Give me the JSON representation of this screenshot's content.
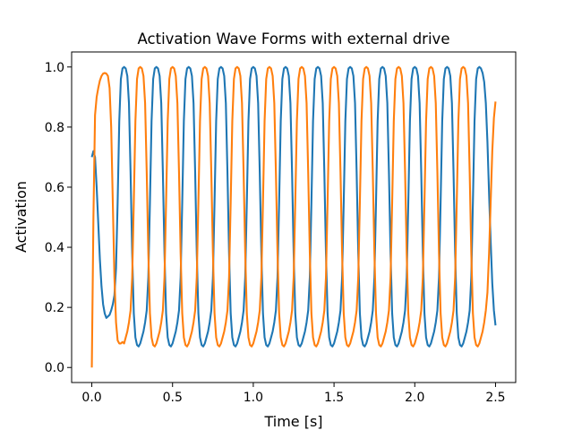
{
  "chart_data": {
    "type": "line",
    "title": "Activation Wave Forms with external drive",
    "x_label": "Time [s]",
    "y_label": "Activation",
    "xlim": [
      -0.125,
      2.625
    ],
    "ylim": [
      -0.05,
      1.05
    ],
    "xticks": [
      {
        "value": 0,
        "label": "0.0"
      },
      0.5,
      {
        "value": 1,
        "label": "1.0"
      },
      1.5,
      {
        "value": 2,
        "label": "2.0"
      },
      2.5
    ],
    "yticks": [
      {
        "value": 0,
        "label": "0.0"
      },
      0.2,
      0.4,
      0.6,
      0.8,
      {
        "value": 1,
        "label": "1.0"
      }
    ],
    "grid": false,
    "x": [
      0,
      0.01,
      0.02,
      0.03,
      0.04,
      0.05,
      0.06,
      0.07,
      0.08,
      0.09,
      0.1,
      0.11,
      0.12,
      0.13,
      0.14,
      0.15,
      0.16,
      0.17,
      0.18,
      0.19,
      0.2,
      0.21,
      0.22,
      0.23,
      0.24,
      0.25,
      0.26,
      0.27,
      0.28,
      0.29,
      0.3,
      0.31,
      0.32,
      0.33,
      0.34,
      0.35,
      0.36,
      0.37,
      0.38,
      0.39,
      0.4,
      0.41,
      0.42,
      0.43,
      0.44,
      0.45,
      0.46,
      0.47,
      0.48,
      0.49,
      0.5,
      0.51,
      0.52,
      0.53,
      0.54,
      0.55,
      0.56,
      0.57,
      0.58,
      0.59,
      0.6,
      0.61,
      0.62,
      0.63,
      0.64,
      0.65,
      0.66,
      0.67,
      0.68,
      0.69,
      0.7,
      0.71,
      0.72,
      0.73,
      0.74,
      0.75,
      0.76,
      0.77,
      0.78,
      0.79,
      0.8,
      0.81,
      0.82,
      0.83,
      0.84,
      0.85,
      0.86,
      0.87,
      0.88,
      0.89,
      0.9,
      0.91,
      0.92,
      0.93,
      0.94,
      0.95,
      0.96,
      0.97,
      0.98,
      0.99,
      1,
      1.01,
      1.02,
      1.03,
      1.04,
      1.05,
      1.06,
      1.07,
      1.08,
      1.09,
      1.1,
      1.11,
      1.12,
      1.13,
      1.14,
      1.15,
      1.16,
      1.17,
      1.18,
      1.19,
      1.2,
      1.21,
      1.22,
      1.23,
      1.24,
      1.25,
      1.26,
      1.27,
      1.28,
      1.29,
      1.3,
      1.31,
      1.32,
      1.33,
      1.34,
      1.35,
      1.36,
      1.37,
      1.38,
      1.39,
      1.4,
      1.41,
      1.42,
      1.43,
      1.44,
      1.45,
      1.46,
      1.47,
      1.48,
      1.49,
      1.5,
      1.51,
      1.52,
      1.53,
      1.54,
      1.55,
      1.56,
      1.57,
      1.58,
      1.59,
      1.6,
      1.61,
      1.62,
      1.63,
      1.64,
      1.65,
      1.66,
      1.67,
      1.68,
      1.69,
      1.7,
      1.71,
      1.72,
      1.73,
      1.74,
      1.75,
      1.76,
      1.77,
      1.78,
      1.79,
      1.8,
      1.81,
      1.82,
      1.83,
      1.84,
      1.85,
      1.86,
      1.87,
      1.88,
      1.89,
      1.9,
      1.91,
      1.92,
      1.93,
      1.94,
      1.95,
      1.96,
      1.97,
      1.98,
      1.99,
      2,
      2.01,
      2.02,
      2.03,
      2.04,
      2.05,
      2.06,
      2.07,
      2.08,
      2.09,
      2.1,
      2.11,
      2.12,
      2.13,
      2.14,
      2.15,
      2.16,
      2.17,
      2.18,
      2.19,
      2.2,
      2.21,
      2.22,
      2.23,
      2.24,
      2.25,
      2.26,
      2.27,
      2.28,
      2.29,
      2.3,
      2.31,
      2.32,
      2.33,
      2.34,
      2.35,
      2.36,
      2.37,
      2.38,
      2.39,
      2.4,
      2.41,
      2.42,
      2.43,
      2.44,
      2.45,
      2.46,
      2.47,
      2.48,
      2.49,
      2.5
    ],
    "series": [
      {
        "color": "#1f77b4",
        "values": [
          0.7,
          0.72,
          0.7,
          0.6,
          0.48,
          0.36,
          0.27,
          0.21,
          0.18,
          0.165,
          0.17,
          0.175,
          0.19,
          0.21,
          0.24,
          0.33,
          0.55,
          0.82,
          0.96,
          0.995,
          1,
          0.995,
          0.97,
          0.88,
          0.65,
          0.38,
          0.18,
          0.1,
          0.075,
          0.07,
          0.08,
          0.1,
          0.12,
          0.15,
          0.19,
          0.3,
          0.55,
          0.82,
          0.96,
          0.995,
          1,
          0.995,
          0.97,
          0.88,
          0.65,
          0.38,
          0.18,
          0.1,
          0.075,
          0.07,
          0.08,
          0.1,
          0.12,
          0.15,
          0.19,
          0.3,
          0.55,
          0.82,
          0.96,
          0.995,
          1,
          0.995,
          0.97,
          0.88,
          0.65,
          0.38,
          0.18,
          0.1,
          0.075,
          0.07,
          0.08,
          0.1,
          0.12,
          0.15,
          0.19,
          0.3,
          0.55,
          0.82,
          0.96,
          0.995,
          1,
          0.995,
          0.97,
          0.88,
          0.65,
          0.38,
          0.18,
          0.1,
          0.075,
          0.07,
          0.08,
          0.1,
          0.12,
          0.15,
          0.19,
          0.3,
          0.55,
          0.82,
          0.96,
          0.995,
          1,
          0.995,
          0.97,
          0.88,
          0.65,
          0.38,
          0.18,
          0.1,
          0.075,
          0.07,
          0.08,
          0.1,
          0.12,
          0.15,
          0.19,
          0.3,
          0.55,
          0.82,
          0.96,
          0.995,
          1,
          0.995,
          0.97,
          0.88,
          0.65,
          0.38,
          0.18,
          0.1,
          0.075,
          0.07,
          0.08,
          0.1,
          0.12,
          0.15,
          0.19,
          0.3,
          0.55,
          0.82,
          0.96,
          0.995,
          1,
          0.995,
          0.97,
          0.88,
          0.65,
          0.38,
          0.18,
          0.1,
          0.075,
          0.07,
          0.08,
          0.1,
          0.12,
          0.15,
          0.19,
          0.3,
          0.55,
          0.82,
          0.96,
          0.995,
          1,
          0.995,
          0.97,
          0.88,
          0.65,
          0.38,
          0.18,
          0.1,
          0.075,
          0.07,
          0.08,
          0.1,
          0.12,
          0.15,
          0.19,
          0.3,
          0.55,
          0.82,
          0.96,
          0.995,
          1,
          0.995,
          0.97,
          0.88,
          0.65,
          0.38,
          0.18,
          0.1,
          0.075,
          0.07,
          0.08,
          0.1,
          0.12,
          0.15,
          0.19,
          0.3,
          0.55,
          0.82,
          0.96,
          0.995,
          1,
          0.995,
          0.97,
          0.88,
          0.65,
          0.38,
          0.18,
          0.1,
          0.075,
          0.07,
          0.08,
          0.1,
          0.12,
          0.15,
          0.19,
          0.3,
          0.55,
          0.82,
          0.96,
          0.995,
          1,
          0.995,
          0.97,
          0.88,
          0.65,
          0.38,
          0.18,
          0.1,
          0.075,
          0.07,
          0.08,
          0.1,
          0.12,
          0.15,
          0.19,
          0.3,
          0.55,
          0.82,
          0.96,
          0.995,
          1,
          0.995,
          0.98,
          0.95,
          0.88,
          0.75,
          0.58,
          0.42,
          0.28,
          0.19,
          0.14
        ]
      },
      {
        "color": "#ff7f0e",
        "values": [
          0,
          0.5,
          0.84,
          0.9,
          0.93,
          0.955,
          0.97,
          0.978,
          0.98,
          0.978,
          0.97,
          0.93,
          0.8,
          0.55,
          0.3,
          0.15,
          0.09,
          0.08,
          0.08,
          0.085,
          0.08,
          0.1,
          0.12,
          0.15,
          0.19,
          0.3,
          0.55,
          0.82,
          0.96,
          0.995,
          1,
          0.995,
          0.97,
          0.88,
          0.65,
          0.38,
          0.18,
          0.1,
          0.075,
          0.07,
          0.08,
          0.1,
          0.12,
          0.15,
          0.19,
          0.3,
          0.55,
          0.82,
          0.96,
          0.995,
          1,
          0.995,
          0.97,
          0.88,
          0.65,
          0.38,
          0.18,
          0.1,
          0.075,
          0.07,
          0.08,
          0.1,
          0.12,
          0.15,
          0.19,
          0.3,
          0.55,
          0.82,
          0.96,
          0.995,
          1,
          0.995,
          0.97,
          0.88,
          0.65,
          0.38,
          0.18,
          0.1,
          0.075,
          0.07,
          0.08,
          0.1,
          0.12,
          0.15,
          0.19,
          0.3,
          0.55,
          0.82,
          0.96,
          0.995,
          1,
          0.995,
          0.97,
          0.88,
          0.65,
          0.38,
          0.18,
          0.1,
          0.075,
          0.07,
          0.08,
          0.1,
          0.12,
          0.15,
          0.19,
          0.3,
          0.55,
          0.82,
          0.96,
          0.995,
          1,
          0.995,
          0.97,
          0.88,
          0.65,
          0.38,
          0.18,
          0.1,
          0.075,
          0.07,
          0.08,
          0.1,
          0.12,
          0.15,
          0.19,
          0.3,
          0.55,
          0.82,
          0.96,
          0.995,
          1,
          0.995,
          0.97,
          0.88,
          0.65,
          0.38,
          0.18,
          0.1,
          0.075,
          0.07,
          0.08,
          0.1,
          0.12,
          0.15,
          0.19,
          0.3,
          0.55,
          0.82,
          0.96,
          0.995,
          1,
          0.995,
          0.97,
          0.88,
          0.65,
          0.38,
          0.18,
          0.1,
          0.075,
          0.07,
          0.08,
          0.1,
          0.12,
          0.15,
          0.19,
          0.3,
          0.55,
          0.82,
          0.96,
          0.995,
          1,
          0.995,
          0.97,
          0.88,
          0.65,
          0.38,
          0.18,
          0.1,
          0.075,
          0.07,
          0.08,
          0.1,
          0.12,
          0.15,
          0.19,
          0.3,
          0.55,
          0.82,
          0.96,
          0.995,
          1,
          0.995,
          0.97,
          0.88,
          0.65,
          0.38,
          0.18,
          0.1,
          0.075,
          0.07,
          0.08,
          0.1,
          0.12,
          0.15,
          0.19,
          0.3,
          0.55,
          0.82,
          0.96,
          0.995,
          1,
          0.995,
          0.97,
          0.88,
          0.65,
          0.38,
          0.18,
          0.1,
          0.075,
          0.07,
          0.08,
          0.1,
          0.12,
          0.15,
          0.19,
          0.3,
          0.55,
          0.82,
          0.96,
          0.995,
          1,
          0.995,
          0.97,
          0.88,
          0.65,
          0.38,
          0.18,
          0.1,
          0.075,
          0.07,
          0.08,
          0.1,
          0.12,
          0.15,
          0.19,
          0.25,
          0.38,
          0.55,
          0.72,
          0.83,
          0.885
        ]
      }
    ]
  }
}
